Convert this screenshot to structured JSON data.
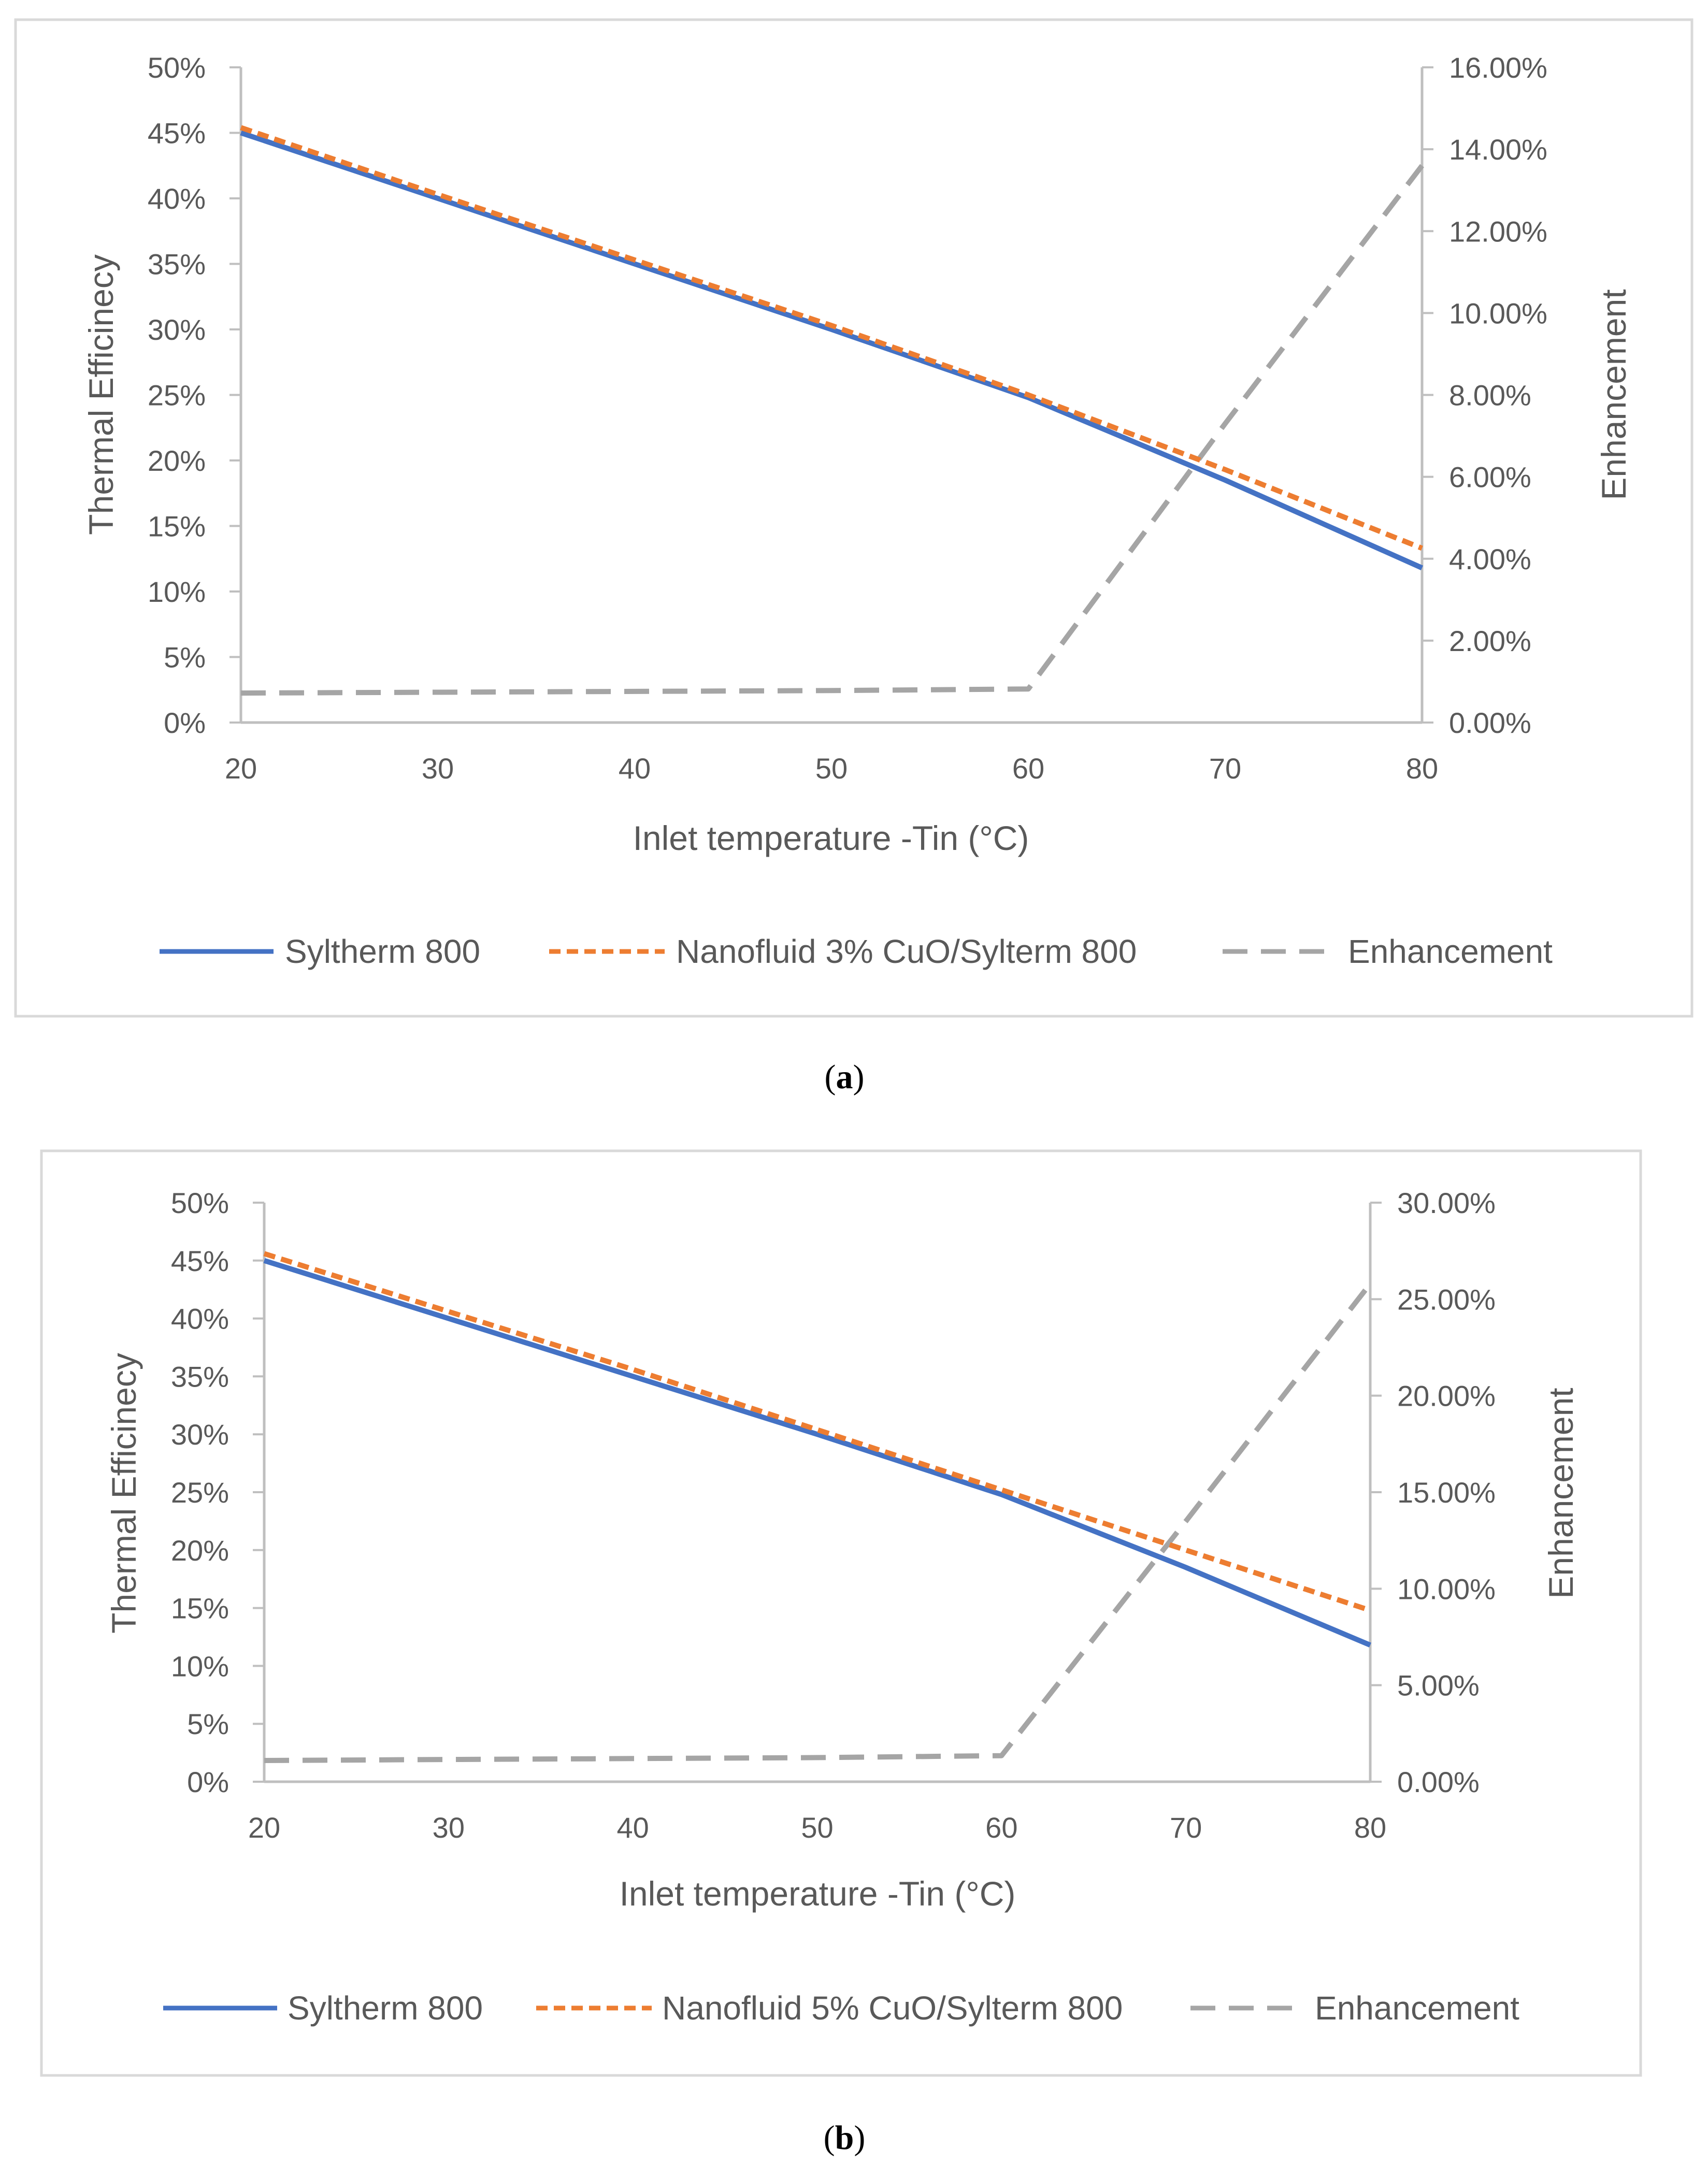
{
  "chart_data": [
    {
      "type": "line",
      "panel": "a",
      "caption_letter": "a",
      "caption_open": "(",
      "caption_close": ")",
      "xlabel": "Inlet temperature -Tin (°C)",
      "ylabel": "Thermal Efficinecy",
      "y2label": "Enhancement",
      "x": [
        20,
        30,
        40,
        50,
        60,
        70,
        80
      ],
      "xticks": [
        "20",
        "30",
        "40",
        "50",
        "60",
        "70",
        "80"
      ],
      "ylim": [
        0,
        50
      ],
      "yticks": [
        "0%",
        "5%",
        "10%",
        "15%",
        "20%",
        "25%",
        "30%",
        "35%",
        "40%",
        "45%",
        "50%"
      ],
      "y2lim": [
        0,
        16
      ],
      "y2ticks": [
        "0.00%",
        "2.00%",
        "4.00%",
        "6.00%",
        "8.00%",
        "10.00%",
        "12.00%",
        "14.00%",
        "16.00%"
      ],
      "series": [
        {
          "name": "Syltherm 800",
          "axis": "left",
          "color": "#4472C4",
          "dash": "solid",
          "values": [
            45,
            40,
            35,
            30,
            24.8,
            18.5,
            11.8
          ]
        },
        {
          "name": "Nanofluid 3% CuO/Sylterm 800",
          "axis": "left",
          "color": "#ED7D31",
          "dash": "short",
          "values": [
            45.4,
            40.3,
            35.3,
            30.3,
            25.0,
            19.3,
            13.3
          ]
        },
        {
          "name": "Enhancement",
          "axis": "right",
          "color": "#A5A5A5",
          "dash": "long",
          "values": [
            0.72,
            0.74,
            0.76,
            0.78,
            0.82,
            7.3,
            13.6
          ]
        }
      ]
    },
    {
      "type": "line",
      "panel": "b",
      "caption_letter": "b",
      "caption_open": "(",
      "caption_close": ")",
      "xlabel": "Inlet temperature -Tin (°C)",
      "ylabel": "Thermal Efficinecy",
      "y2label": "Enhancement",
      "x": [
        20,
        30,
        40,
        50,
        60,
        70,
        80
      ],
      "xticks": [
        "20",
        "30",
        "40",
        "50",
        "60",
        "70",
        "80"
      ],
      "ylim": [
        0,
        50
      ],
      "yticks": [
        "0%",
        "5%",
        "10%",
        "15%",
        "20%",
        "25%",
        "30%",
        "35%",
        "40%",
        "45%",
        "50%"
      ],
      "y2lim": [
        0,
        30
      ],
      "y2ticks": [
        "0.00%",
        "5.00%",
        "10.00%",
        "15.00%",
        "20.00%",
        "25.00%",
        "30.00%"
      ],
      "series": [
        {
          "name": "Syltherm 800",
          "axis": "left",
          "color": "#4472C4",
          "dash": "solid",
          "values": [
            45,
            40,
            35,
            30,
            24.8,
            18.5,
            11.8
          ]
        },
        {
          "name": "Nanofluid 5% CuO/Sylterm 800",
          "axis": "left",
          "color": "#ED7D31",
          "dash": "short",
          "values": [
            45.6,
            40.6,
            35.6,
            30.4,
            25.2,
            20.0,
            14.8
          ]
        },
        {
          "name": "Enhancement",
          "axis": "right",
          "color": "#A5A5A5",
          "dash": "long",
          "values": [
            1.1,
            1.15,
            1.2,
            1.25,
            1.35,
            13.5,
            25.8
          ]
        }
      ]
    }
  ]
}
